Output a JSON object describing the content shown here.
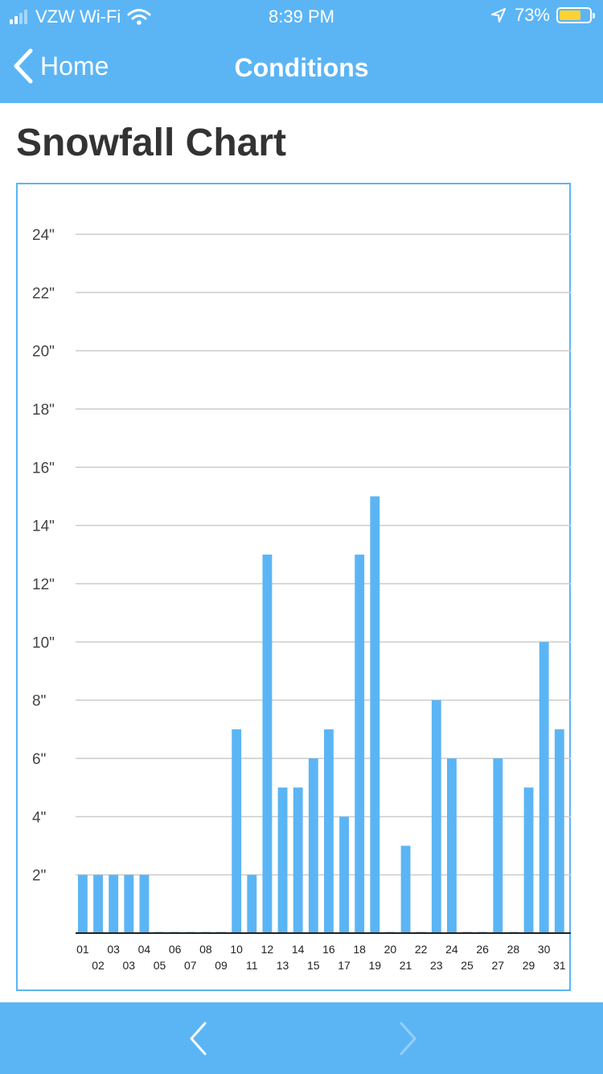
{
  "status_bar": {
    "carrier": "VZW Wi-Fi",
    "time": "8:39 PM",
    "battery": "73%",
    "battery_level": 0.73,
    "battery_color": "#ffd233"
  },
  "nav": {
    "back_label": "Home",
    "title": "Conditions"
  },
  "page": {
    "title": "Snowfall Chart"
  },
  "colors": {
    "brand": "#5bb5f5",
    "bar": "#5bb5f5",
    "gridline": "#cccccc",
    "axis": "#222222"
  },
  "chart_data": {
    "type": "bar",
    "categories": [
      "01",
      "02",
      "03",
      "03",
      "04",
      "05",
      "06",
      "07",
      "08",
      "09",
      "10",
      "11",
      "12",
      "13",
      "14",
      "15",
      "16",
      "17",
      "18",
      "19",
      "20",
      "21",
      "22",
      "23",
      "24",
      "25",
      "26",
      "27",
      "28",
      "29",
      "30",
      "31"
    ],
    "values": [
      2,
      2,
      2,
      2,
      2,
      0,
      0,
      0,
      0,
      0,
      7,
      2,
      13,
      5,
      5,
      6,
      7,
      4,
      13,
      15,
      0,
      3,
      0,
      8,
      6,
      0,
      0,
      6,
      0,
      5,
      10,
      7
    ],
    "ylim": [
      0,
      24
    ],
    "yticks": [
      2,
      4,
      6,
      8,
      10,
      12,
      14,
      16,
      18,
      20,
      22,
      24
    ],
    "ytick_labels": [
      "2\"",
      "4\"",
      "6\"",
      "8\"",
      "10\"",
      "12\"",
      "14\"",
      "16\"",
      "18\"",
      "20\"",
      "22\"",
      "24\""
    ],
    "grid": true,
    "legend": "none",
    "title": "",
    "xlabel": "",
    "ylabel": ""
  },
  "pager": {
    "prev_icon": "chevron-left-icon",
    "next_icon": "chevron-right-icon",
    "next_enabled": false
  }
}
